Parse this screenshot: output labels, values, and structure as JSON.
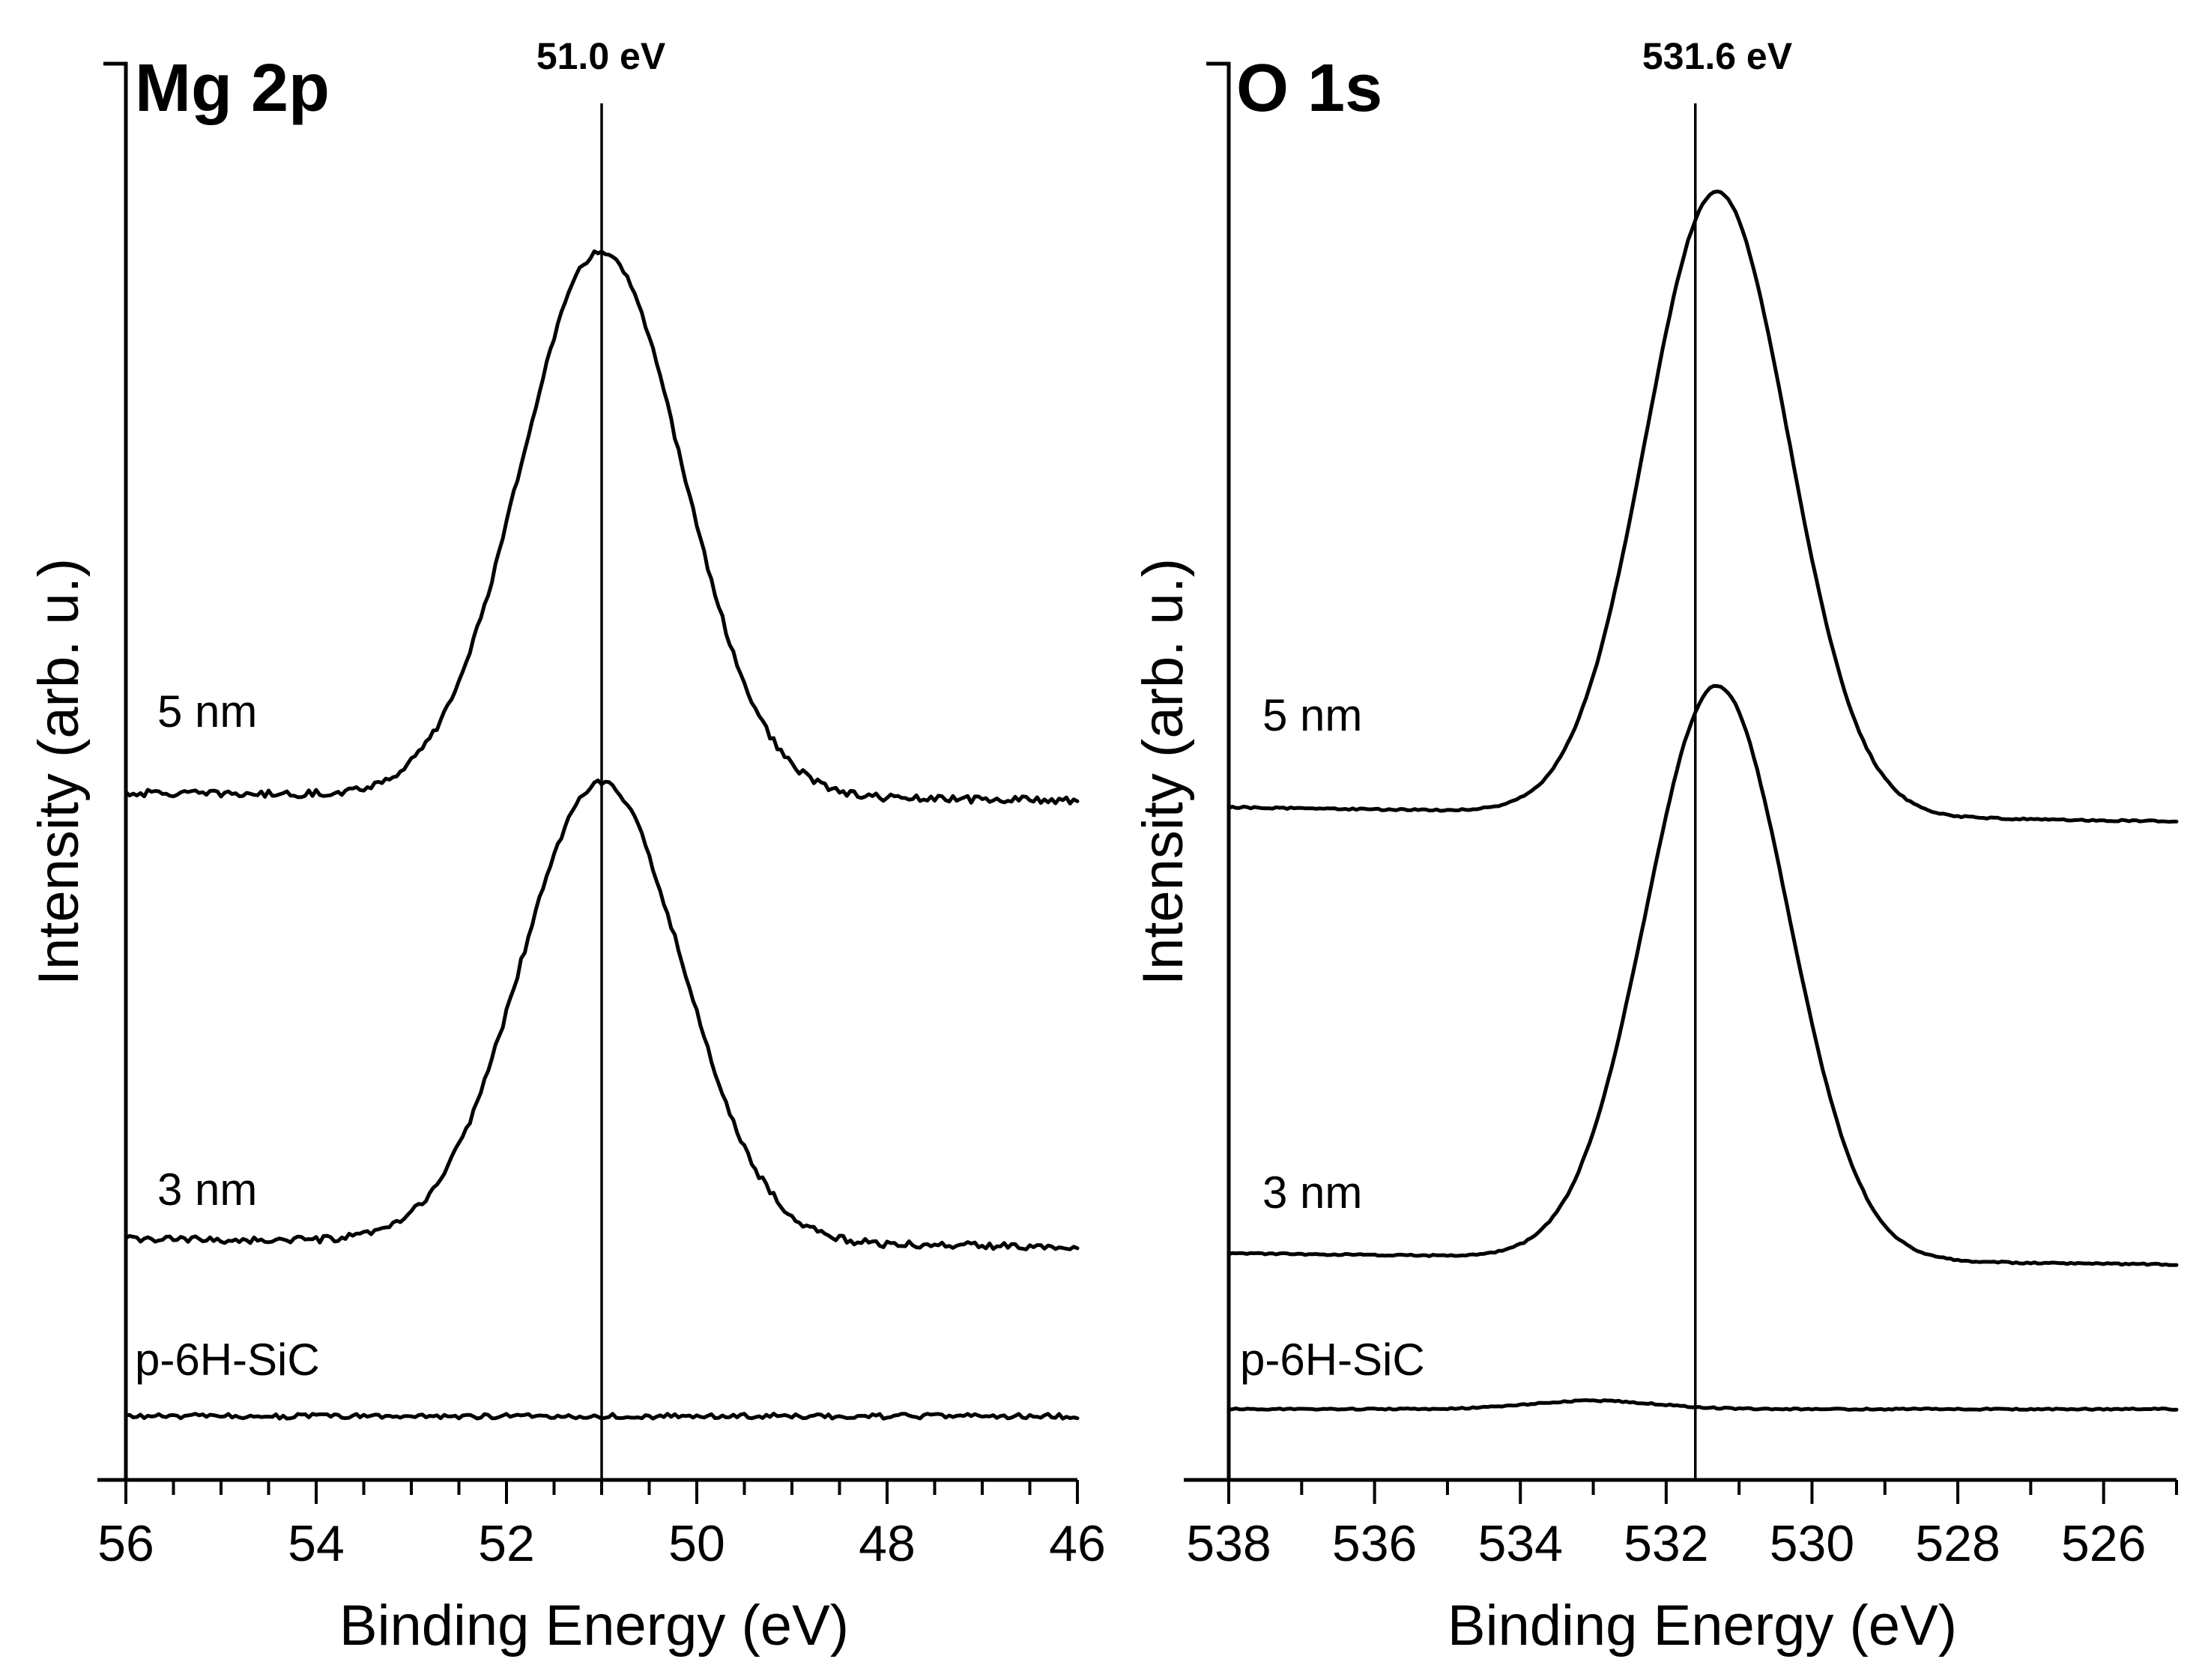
{
  "chart_data": [
    {
      "type": "line",
      "title": "Mg 2p",
      "xlabel": "Binding Energy (eV)",
      "ylabel": "Intensity (arb. u.)",
      "xlim": [
        56,
        46
      ],
      "x_reversed": true,
      "ylim": [
        0,
        10
      ],
      "y_ticks_shown": false,
      "xticks": [
        56,
        54,
        52,
        50,
        48,
        46
      ],
      "xtick_labels": [
        "56",
        "54",
        "52",
        "50",
        "48",
        "46"
      ],
      "minor_xtick_step": 0.5,
      "reference_line": {
        "x": 51.0,
        "label": "51.0 eV"
      },
      "series": [
        {
          "name": "5 nm",
          "baseline": 4.85,
          "peak_center": 51.0,
          "peak_height": 3.85,
          "fwhm": 2.0,
          "slope": -0.05,
          "noise": 0.05
        },
        {
          "name": "3 nm",
          "baseline": 1.7,
          "peak_center": 51.0,
          "peak_height": 3.25,
          "fwhm": 2.0,
          "slope": -0.05,
          "noise": 0.05
        },
        {
          "name": "p-6H-SiC",
          "baseline": 0.45,
          "peak_center": 51.0,
          "peak_height": 0.0,
          "fwhm": 2.0,
          "slope": 0.0,
          "noise": 0.035
        }
      ]
    },
    {
      "type": "line",
      "title": "O 1s",
      "xlabel": "Binding Energy (eV)",
      "ylabel": "Intensity (arb. u.)",
      "xlim": [
        538,
        525
      ],
      "x_reversed": true,
      "ylim": [
        0,
        10
      ],
      "y_ticks_shown": false,
      "xticks": [
        538,
        536,
        534,
        532,
        530,
        528,
        526
      ],
      "xtick_labels": [
        "538",
        "536",
        "534",
        "532",
        "530",
        "528",
        "526"
      ],
      "minor_xtick_step": 1,
      "reference_line": {
        "x": 531.6,
        "label": "531.6 eV"
      },
      "series": [
        {
          "name": "5 nm",
          "baseline": 4.75,
          "peak_center": 531.3,
          "peak_height": 4.4,
          "fwhm": 2.3,
          "slope": -0.1,
          "noise": 0.012
        },
        {
          "name": "3 nm",
          "baseline": 1.6,
          "peak_center": 531.3,
          "peak_height": 4.05,
          "fwhm": 2.3,
          "slope": -0.08,
          "noise": 0.012
        },
        {
          "name": "p-6H-SiC",
          "baseline": 0.5,
          "peak_center": 533.0,
          "peak_height": 0.06,
          "fwhm": 2.0,
          "slope": 0.0,
          "noise": 0.01
        }
      ]
    }
  ]
}
